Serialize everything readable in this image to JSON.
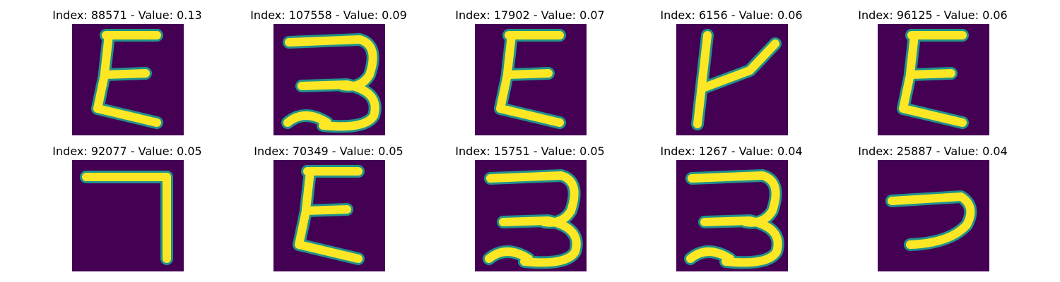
{
  "figure": {
    "colors": {
      "background": "#440154",
      "stroke": "#fde725",
      "edge": "#21918c"
    },
    "tiles": [
      {
        "title": "Index: 88571 - Value: 0.13",
        "shape": "epsilon"
      },
      {
        "title": "Index: 107558 - Value: 0.09",
        "shape": "three"
      },
      {
        "title": "Index: 17902 - Value: 0.07",
        "shape": "epsilon"
      },
      {
        "title": "Index: 6156 - Value: 0.06",
        "shape": "y"
      },
      {
        "title": "Index: 96125 - Value: 0.06",
        "shape": "epsilon"
      },
      {
        "title": "Index: 92077 - Value: 0.05",
        "shape": "seven"
      },
      {
        "title": "Index: 70349 - Value: 0.05",
        "shape": "epsilon"
      },
      {
        "title": "Index: 15751 - Value: 0.05",
        "shape": "three"
      },
      {
        "title": "Index: 1267 - Value: 0.04",
        "shape": "three"
      },
      {
        "title": "Index: 25887 - Value: 0.04",
        "shape": "hook"
      }
    ]
  }
}
